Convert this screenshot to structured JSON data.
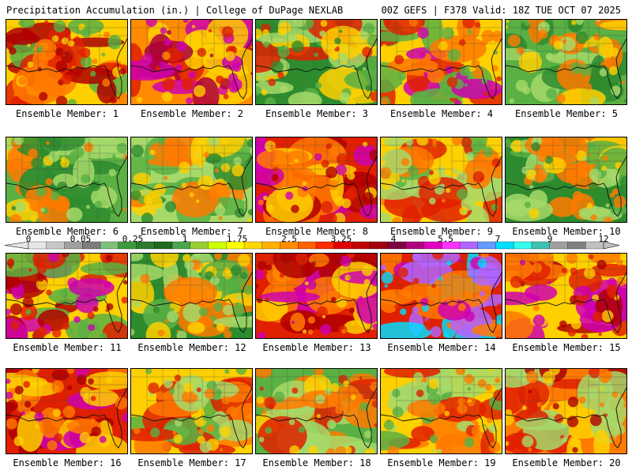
{
  "header": {
    "left": "Precipitation Accumulation (in.) | College of DuPage NEXLAB",
    "right": "00Z GEFS | F378 Valid: 18Z TUE OCT 07 2025"
  },
  "colorbar": {
    "tick_labels": [
      "0",
      "0.05",
      "0.25",
      "1",
      "1.75",
      "2.5",
      "3.25",
      "4",
      "5.5",
      "7",
      "9",
      "12"
    ],
    "colors": [
      "#e6e6e6",
      "#c8c8c8",
      "#a0a0a0",
      "#7d7d7d",
      "#7fc07f",
      "#3c9a3c",
      "#2d7a2d",
      "#1e6a1e",
      "#4ca64c",
      "#9acd32",
      "#ccff00",
      "#ffff00",
      "#ffd700",
      "#ffb000",
      "#ff8c00",
      "#ff6000",
      "#ff2a00",
      "#e00000",
      "#c00000",
      "#a00010",
      "#800040",
      "#b00080",
      "#e000c0",
      "#ff33ff",
      "#b066ff",
      "#6699ff",
      "#00ddff",
      "#33ffee",
      "#40c0b0",
      "#a0a0a0",
      "#808080",
      "#c0c0c0"
    ]
  },
  "members": [
    {
      "label": "Ensemble Member: 1",
      "palette": [
        "#ffd000",
        "#ff7a00",
        "#e02000",
        "#b00000",
        "#5ab043"
      ]
    },
    {
      "label": "Ensemble Member: 2",
      "palette": [
        "#ff8c00",
        "#e02000",
        "#b0003a",
        "#d000b0",
        "#ffd000"
      ]
    },
    {
      "label": "Ensemble Member: 3",
      "palette": [
        "#2e8b2e",
        "#5ab043",
        "#a6d96a",
        "#ffd000",
        "#e02000"
      ]
    },
    {
      "label": "Ensemble Member: 4",
      "palette": [
        "#ffd000",
        "#ff7a00",
        "#e02000",
        "#5ab043",
        "#d000b0"
      ]
    },
    {
      "label": "Ensemble Member: 5",
      "palette": [
        "#5ab043",
        "#a6d96a",
        "#ffd000",
        "#ff7a00",
        "#2e8b2e"
      ]
    },
    {
      "label": "Ensemble Member: 6",
      "palette": [
        "#5ab043",
        "#a6d96a",
        "#ffd000",
        "#ff7a00",
        "#2e8b2e"
      ]
    },
    {
      "label": "Ensemble Member: 7",
      "palette": [
        "#a6d96a",
        "#ffd000",
        "#5ab043",
        "#ff7a00",
        "#2e8b2e"
      ]
    },
    {
      "label": "Ensemble Member: 8",
      "palette": [
        "#e02000",
        "#ff7a00",
        "#b00000",
        "#ffd000",
        "#d000b0"
      ]
    },
    {
      "label": "Ensemble Member: 9",
      "palette": [
        "#ffd000",
        "#a6d96a",
        "#5ab043",
        "#ff7a00",
        "#e02000"
      ]
    },
    {
      "label": "Ensemble Member: 10",
      "palette": [
        "#2e8b2e",
        "#5ab043",
        "#a6d96a",
        "#ffd000",
        "#ff7a00"
      ]
    },
    {
      "label": "Ensemble Member: 11",
      "palette": [
        "#ffd000",
        "#e02000",
        "#b00000",
        "#5ab043",
        "#d000b0"
      ]
    },
    {
      "label": "Ensemble Member: 12",
      "palette": [
        "#2e8b2e",
        "#5ab043",
        "#a6d96a",
        "#ffd000",
        "#ff7a00"
      ]
    },
    {
      "label": "Ensemble Member: 13",
      "palette": [
        "#e02000",
        "#ff7a00",
        "#ffd000",
        "#b00000",
        "#d000b0"
      ]
    },
    {
      "label": "Ensemble Member: 14",
      "palette": [
        "#e02000",
        "#d000b0",
        "#b066ff",
        "#00ddff",
        "#ff7a00"
      ]
    },
    {
      "label": "Ensemble Member: 15",
      "palette": [
        "#ffd000",
        "#ff7a00",
        "#e02000",
        "#b00000",
        "#d000b0"
      ]
    },
    {
      "label": "Ensemble Member: 16",
      "palette": [
        "#e02000",
        "#b00000",
        "#d000b0",
        "#ff7a00",
        "#ffd000"
      ]
    },
    {
      "label": "Ensemble Member: 17",
      "palette": [
        "#ffd000",
        "#ff7a00",
        "#a6d96a",
        "#5ab043",
        "#e02000"
      ]
    },
    {
      "label": "Ensemble Member: 18",
      "palette": [
        "#5ab043",
        "#a6d96a",
        "#ffd000",
        "#e02000",
        "#ff7a00"
      ]
    },
    {
      "label": "Ensemble Member: 19",
      "palette": [
        "#ffd000",
        "#a6d96a",
        "#5ab043",
        "#ff7a00",
        "#e02000"
      ]
    },
    {
      "label": "Ensemble Member: 20",
      "palette": [
        "#ff7a00",
        "#e02000",
        "#ffd000",
        "#b00000",
        "#a6d96a"
      ]
    }
  ]
}
